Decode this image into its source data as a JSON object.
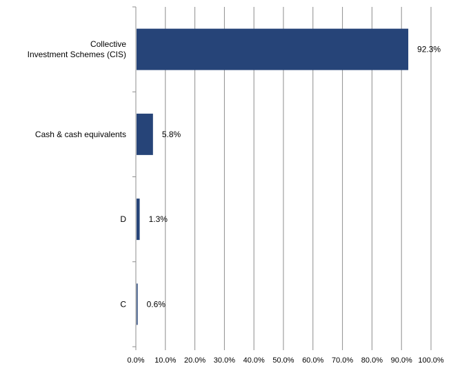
{
  "chart_data": {
    "type": "bar",
    "orientation": "horizontal",
    "title": "",
    "xlabel": "",
    "ylabel": "",
    "categories": [
      [
        "Collective",
        "Investment Schemes (CIS)"
      ],
      [
        "Cash & cash equivalents"
      ],
      [
        "D"
      ],
      [
        "C"
      ]
    ],
    "values": [
      92.3,
      5.8,
      1.3,
      0.6
    ],
    "data_labels": [
      "92.3%",
      "5.8%",
      "1.3%",
      "0.6%"
    ],
    "xlim": [
      0,
      100
    ],
    "xticks": [
      0,
      10,
      20,
      30,
      40,
      50,
      60,
      70,
      80,
      90,
      100
    ],
    "xtick_labels": [
      "0.0%",
      "10.0%",
      "20.0%",
      "30.0%",
      "40.0%",
      "50.0%",
      "60.0%",
      "70.0%",
      "80.0%",
      "90.0%",
      "100.0%"
    ],
    "grid": "vertical",
    "legend": "none",
    "bar_color": "#264478",
    "grid_color": "#8c8c8c"
  }
}
